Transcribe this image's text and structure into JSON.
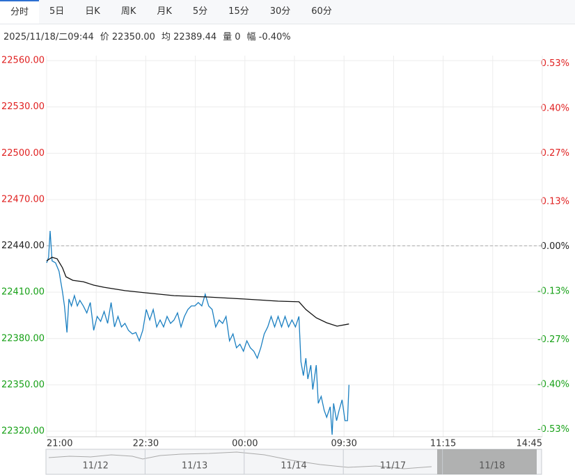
{
  "tabs": [
    "分时",
    "5日",
    "日K",
    "周K",
    "月K",
    "5分",
    "15分",
    "30分",
    "60分"
  ],
  "info": [
    "2025/11/18/二09:44",
    "价 22350.00",
    "均 22389.44",
    "量 0",
    "幅 -0.40%"
  ],
  "chart_data": {
    "type": "line",
    "base": 22440,
    "ylim": [
      22316.4,
      22563.2
    ],
    "yticks": [
      {
        "value": 22320,
        "label": "22320.00"
      },
      {
        "value": 22350,
        "label": "22350.00"
      },
      {
        "value": 22380,
        "label": "22380.00"
      },
      {
        "value": 22410,
        "label": "22410.00"
      },
      {
        "value": 22440,
        "label": "22440.00"
      },
      {
        "value": 22470,
        "label": "22470.00"
      },
      {
        "value": 22500,
        "label": "22500.00"
      },
      {
        "value": 22530,
        "label": "22530.00"
      },
      {
        "value": 22560,
        "label": "22560.00"
      }
    ],
    "y2lim": [
      -0.551,
      0.553
    ],
    "y2ticks": [
      {
        "value": -0.53,
        "label": "-0.53%"
      },
      {
        "value": -0.4,
        "label": "-0.40%"
      },
      {
        "value": -0.27,
        "label": "-0.27%"
      },
      {
        "value": -0.13,
        "label": "-0.13%"
      },
      {
        "value": 0,
        "label": "0.00%"
      },
      {
        "value": 0.13,
        "label": "0.13%"
      },
      {
        "value": 0.27,
        "label": "0.27%"
      },
      {
        "value": 0.4,
        "label": "0.40%"
      },
      {
        "value": 0.53,
        "label": "0.53%"
      }
    ],
    "xlim": [
      0,
      10
    ],
    "xticks": [
      {
        "value": 0,
        "label": "21:00"
      },
      {
        "value": 2,
        "label": "22:30"
      },
      {
        "value": 4,
        "label": "00:00"
      },
      {
        "value": 6,
        "label": "09:30"
      },
      {
        "value": 8,
        "label": "11:15"
      },
      {
        "value": 10,
        "label": "14:45"
      }
    ],
    "grid": true,
    "up_color": "#e02020",
    "down_color": "#16a016",
    "series": [
      {
        "color": "#1a7fc1",
        "x": [
          0,
          0.04,
          0.07,
          0.11,
          0.18,
          0.25,
          0.32,
          0.36,
          0.41,
          0.45,
          0.5,
          0.56,
          0.62,
          0.67,
          0.74,
          0.81,
          0.88,
          0.95,
          1.02,
          1.09,
          1.16,
          1.23,
          1.3,
          1.37,
          1.44,
          1.51,
          1.58,
          1.65,
          1.73,
          1.8,
          1.87,
          1.94,
          2.01,
          2.08,
          2.15,
          2.22,
          2.29,
          2.36,
          2.43,
          2.5,
          2.57,
          2.64,
          2.71,
          2.78,
          2.85,
          2.92,
          2.99,
          3.06,
          3.13,
          3.2,
          3.27,
          3.34,
          3.41,
          3.48,
          3.55,
          3.62,
          3.69,
          3.76,
          3.83,
          3.9,
          3.97,
          4.04,
          4.11,
          4.18,
          4.25,
          4.32,
          4.39,
          4.46,
          4.53,
          4.6,
          4.67,
          4.74,
          4.81,
          4.88,
          4.95,
          5.02,
          5.09,
          5.13,
          5.18,
          5.23,
          5.27,
          5.33,
          5.37,
          5.44,
          5.48,
          5.54,
          5.6,
          5.65,
          5.72,
          5.76,
          5.79,
          5.85,
          5.9,
          5.96,
          6.02,
          6.07,
          6.1
        ],
        "values": [
          22429.0,
          22432.6,
          22449.7,
          22430.3,
          22429.0,
          22423.6,
          22410.1,
          22401.1,
          22383.9,
          22405.6,
          22401.1,
          22407.8,
          22401.1,
          22404.7,
          22401.1,
          22396.6,
          22403.3,
          22385.3,
          22394.3,
          22391.1,
          22397.5,
          22389.8,
          22403.3,
          22387.5,
          22394.3,
          22387.5,
          22389.8,
          22385.3,
          22383.0,
          22383.9,
          22378.5,
          22385.3,
          22398.8,
          22392.0,
          22398.8,
          22387.5,
          22392.0,
          22387.5,
          22394.3,
          22389.8,
          22392.0,
          22396.6,
          22387.5,
          22394.3,
          22398.8,
          22401.1,
          22401.1,
          22403.3,
          22401.1,
          22408.7,
          22401.1,
          22398.8,
          22387.5,
          22392.0,
          22389.8,
          22394.3,
          22378.5,
          22383.0,
          22374.0,
          22376.3,
          22371.8,
          22378.5,
          22374.0,
          22371.8,
          22367.3,
          22374.0,
          22383.0,
          22387.5,
          22394.3,
          22387.5,
          22394.3,
          22387.5,
          22394.3,
          22387.5,
          22392.0,
          22387.5,
          22394.3,
          22365.0,
          22356.0,
          22367.3,
          22353.8,
          22362.8,
          22347.0,
          22362.8,
          22338.0,
          22342.5,
          22333.5,
          22329.0,
          22335.8,
          22317.7,
          22338.0,
          22326.8,
          22333.5,
          22340.3,
          22326.8,
          22326.8,
          22350.0
        ]
      },
      {
        "color": "#111111",
        "x": [
          0,
          0.11,
          0.21,
          0.32,
          0.39,
          0.53,
          0.74,
          0.95,
          1.16,
          1.58,
          2.01,
          2.57,
          3.27,
          3.97,
          4.67,
          5.09,
          5.23,
          5.44,
          5.65,
          5.86,
          6.1
        ],
        "values": [
          22430.3,
          22432.6,
          22431.7,
          22425.8,
          22420.0,
          22417.7,
          22416.8,
          22414.6,
          22413.2,
          22411.0,
          22409.6,
          22407.8,
          22406.9,
          22405.6,
          22404.2,
          22403.8,
          22398.8,
          22393.4,
          22390.2,
          22388.0,
          22389.44
        ]
      }
    ]
  },
  "navigator": {
    "dates": [
      "11/12",
      "11/13",
      "11/14",
      "11/17",
      "11/18"
    ]
  }
}
